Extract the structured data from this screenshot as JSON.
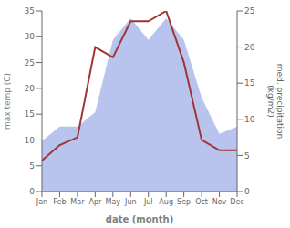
{
  "chart_data": {
    "type": "line",
    "x_label": "date (month)",
    "y_label": "max temp (C)",
    "y2_label": "med. precipitation\n(kg/m2)",
    "categories": [
      "Jan",
      "Feb",
      "Mar",
      "Apr",
      "May",
      "Jun",
      "Jul",
      "Aug",
      "Sep",
      "Oct",
      "Nov",
      "Dec"
    ],
    "series": [
      {
        "type": "area",
        "axis": "y2",
        "color": "#b8c4ee",
        "values": [
          7,
          9,
          9,
          11,
          21,
          24,
          21,
          24,
          21,
          13,
          8,
          9
        ]
      },
      {
        "type": "line",
        "color": "#a03535",
        "values": [
          6.0,
          9.0,
          10.5,
          28.0,
          26.0,
          33.0,
          33.0,
          35.0,
          25.0,
          10.0,
          8.0,
          8.0
        ]
      }
    ],
    "ylim": [
      0,
      35
    ],
    "yticks": [
      0,
      5,
      10,
      15,
      20,
      25,
      30,
      35
    ],
    "y2lim": [
      0,
      25
    ],
    "y2ticks": [
      0,
      5,
      10,
      15,
      20,
      25
    ],
    "grid": false
  }
}
